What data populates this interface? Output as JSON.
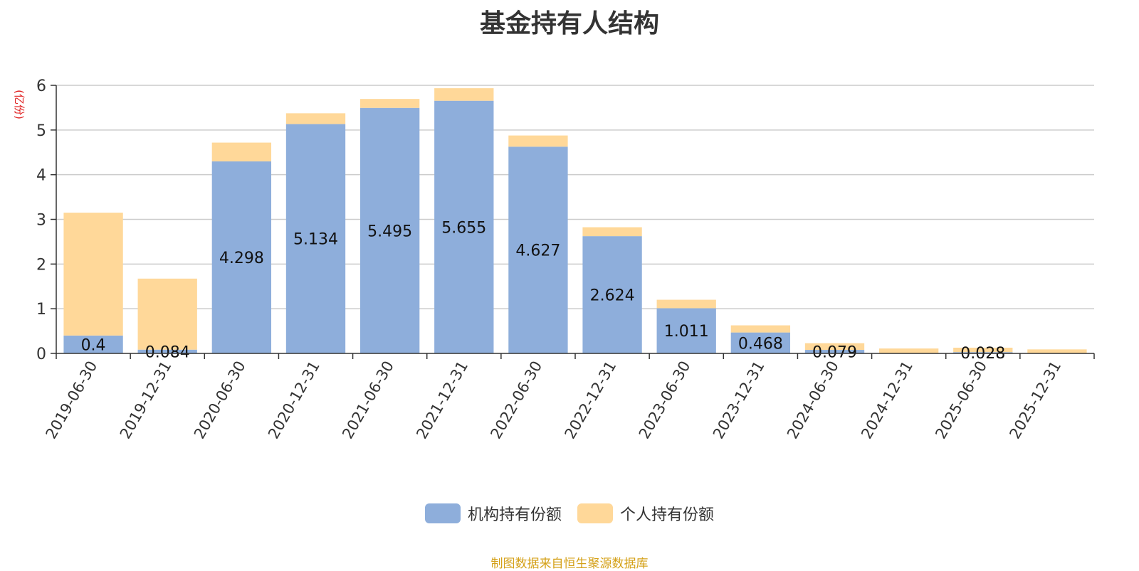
{
  "chart_data": {
    "type": "bar",
    "stacked": true,
    "title": "基金持有人结构",
    "ylabel": "(亿份)",
    "xlabel": "",
    "ylim": [
      0,
      6
    ],
    "yticks": [
      0,
      1,
      2,
      3,
      4,
      5,
      6
    ],
    "grid": true,
    "legend_position": "bottom",
    "categories": [
      "2019-06-30",
      "2019-12-31",
      "2020-06-30",
      "2020-12-31",
      "2021-06-30",
      "2021-12-31",
      "2022-06-30",
      "2022-12-31",
      "2023-06-30",
      "2023-12-31",
      "2024-06-30",
      "2024-12-31",
      "2025-06-30",
      "2025-12-31"
    ],
    "series": [
      {
        "name": "机构持有份额",
        "color": "#8eaedb",
        "values": [
          0.4,
          0.084,
          4.298,
          5.134,
          5.495,
          5.655,
          4.627,
          2.624,
          1.011,
          0.468,
          0.079,
          0,
          0.028,
          0
        ],
        "labels": [
          "0.4",
          "0.084",
          "4.298",
          "5.134",
          "5.495",
          "5.655",
          "4.627",
          "2.624",
          "1.011",
          "0.468",
          "0.079",
          "",
          "0.028",
          ""
        ]
      },
      {
        "name": "个人持有份额",
        "color": "#ffd899",
        "values": [
          2.75,
          1.59,
          0.42,
          0.24,
          0.2,
          0.28,
          0.25,
          0.2,
          0.19,
          0.16,
          0.15,
          0.11,
          0.1,
          0.09
        ]
      }
    ]
  },
  "source_text": "制图数据来自恒生聚源数据库",
  "colors": {
    "axis_label": "#e02020",
    "source": "#d4a017",
    "grid": "#cccccc",
    "axis": "#333333"
  }
}
